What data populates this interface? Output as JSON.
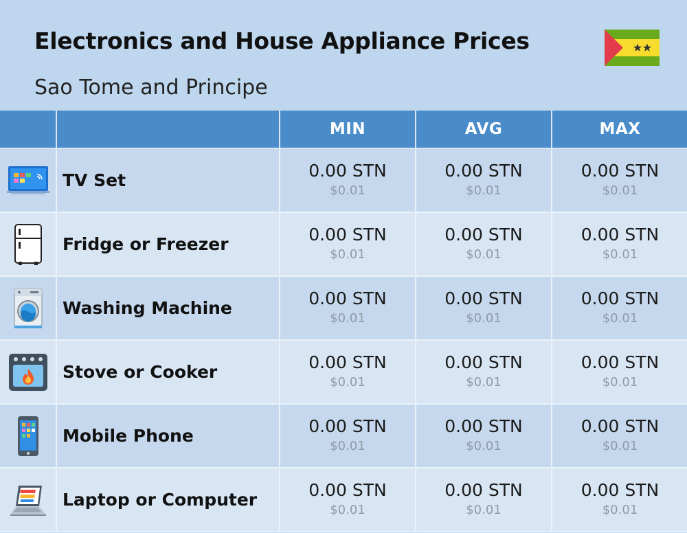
{
  "header": {
    "title": "Electronics and House Appliance Prices",
    "subtitle": "Sao Tome and Principe"
  },
  "flag": {
    "country": "Sao Tome and Principe",
    "colors": {
      "green": "#6aab1d",
      "yellow": "#f7dc2e",
      "red": "#e23b4b",
      "star": "#333333"
    }
  },
  "table": {
    "columns": [
      "",
      "",
      "MIN",
      "AVG",
      "MAX"
    ],
    "rows": [
      {
        "icon": "tv-icon",
        "name": "TV Set",
        "min": "0.00 STN",
        "min_usd": "$0.01",
        "avg": "0.00 STN",
        "avg_usd": "$0.01",
        "max": "0.00 STN",
        "max_usd": "$0.01"
      },
      {
        "icon": "fridge-icon",
        "name": "Fridge or Freezer",
        "min": "0.00 STN",
        "min_usd": "$0.01",
        "avg": "0.00 STN",
        "avg_usd": "$0.01",
        "max": "0.00 STN",
        "max_usd": "$0.01"
      },
      {
        "icon": "washing-machine-icon",
        "name": "Washing Machine",
        "min": "0.00 STN",
        "min_usd": "$0.01",
        "avg": "0.00 STN",
        "avg_usd": "$0.01",
        "max": "0.00 STN",
        "max_usd": "$0.01"
      },
      {
        "icon": "stove-icon",
        "name": "Stove or Cooker",
        "min": "0.00 STN",
        "min_usd": "$0.01",
        "avg": "0.00 STN",
        "avg_usd": "$0.01",
        "max": "0.00 STN",
        "max_usd": "$0.01"
      },
      {
        "icon": "mobile-phone-icon",
        "name": "Mobile Phone",
        "min": "0.00 STN",
        "min_usd": "$0.01",
        "avg": "0.00 STN",
        "avg_usd": "$0.01",
        "max": "0.00 STN",
        "max_usd": "$0.01"
      },
      {
        "icon": "laptop-icon",
        "name": "Laptop or Computer",
        "min": "0.00 STN",
        "min_usd": "$0.01",
        "avg": "0.00 STN",
        "avg_usd": "$0.01",
        "max": "0.00 STN",
        "max_usd": "$0.01"
      }
    ]
  }
}
